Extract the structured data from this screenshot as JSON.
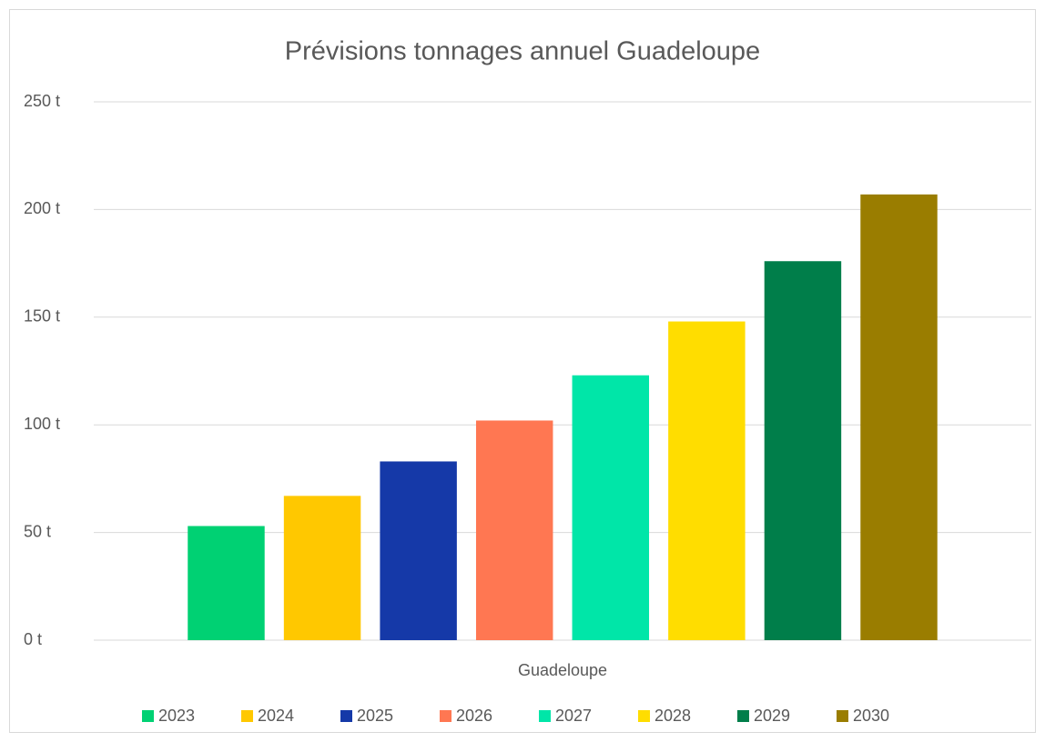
{
  "chart_data": {
    "type": "bar",
    "title": "Prévisions tonnages annuel Guadeloupe",
    "categories": [
      "Guadeloupe"
    ],
    "series": [
      {
        "name": "2023",
        "color": "#00d173",
        "values": [
          53
        ]
      },
      {
        "name": "2024",
        "color": "#ffc800",
        "values": [
          67
        ]
      },
      {
        "name": "2025",
        "color": "#1539a8",
        "values": [
          83
        ]
      },
      {
        "name": "2026",
        "color": "#ff7752",
        "values": [
          102
        ]
      },
      {
        "name": "2027",
        "color": "#00e6a8",
        "values": [
          123
        ]
      },
      {
        "name": "2028",
        "color": "#ffdd00",
        "values": [
          148
        ]
      },
      {
        "name": "2029",
        "color": "#007e4a",
        "values": [
          176
        ]
      },
      {
        "name": "2030",
        "color": "#9a7d00",
        "values": [
          207
        ]
      }
    ],
    "ylim": [
      0,
      250
    ],
    "yticks": [
      {
        "value": 0,
        "label": "0 t"
      },
      {
        "value": 50,
        "label": "50 t"
      },
      {
        "value": 100,
        "label": "100 t"
      },
      {
        "value": 150,
        "label": "150 t"
      },
      {
        "value": 200,
        "label": "200 t"
      },
      {
        "value": 250,
        "label": "250 t"
      }
    ],
    "grid": true,
    "legend": "bottom"
  }
}
